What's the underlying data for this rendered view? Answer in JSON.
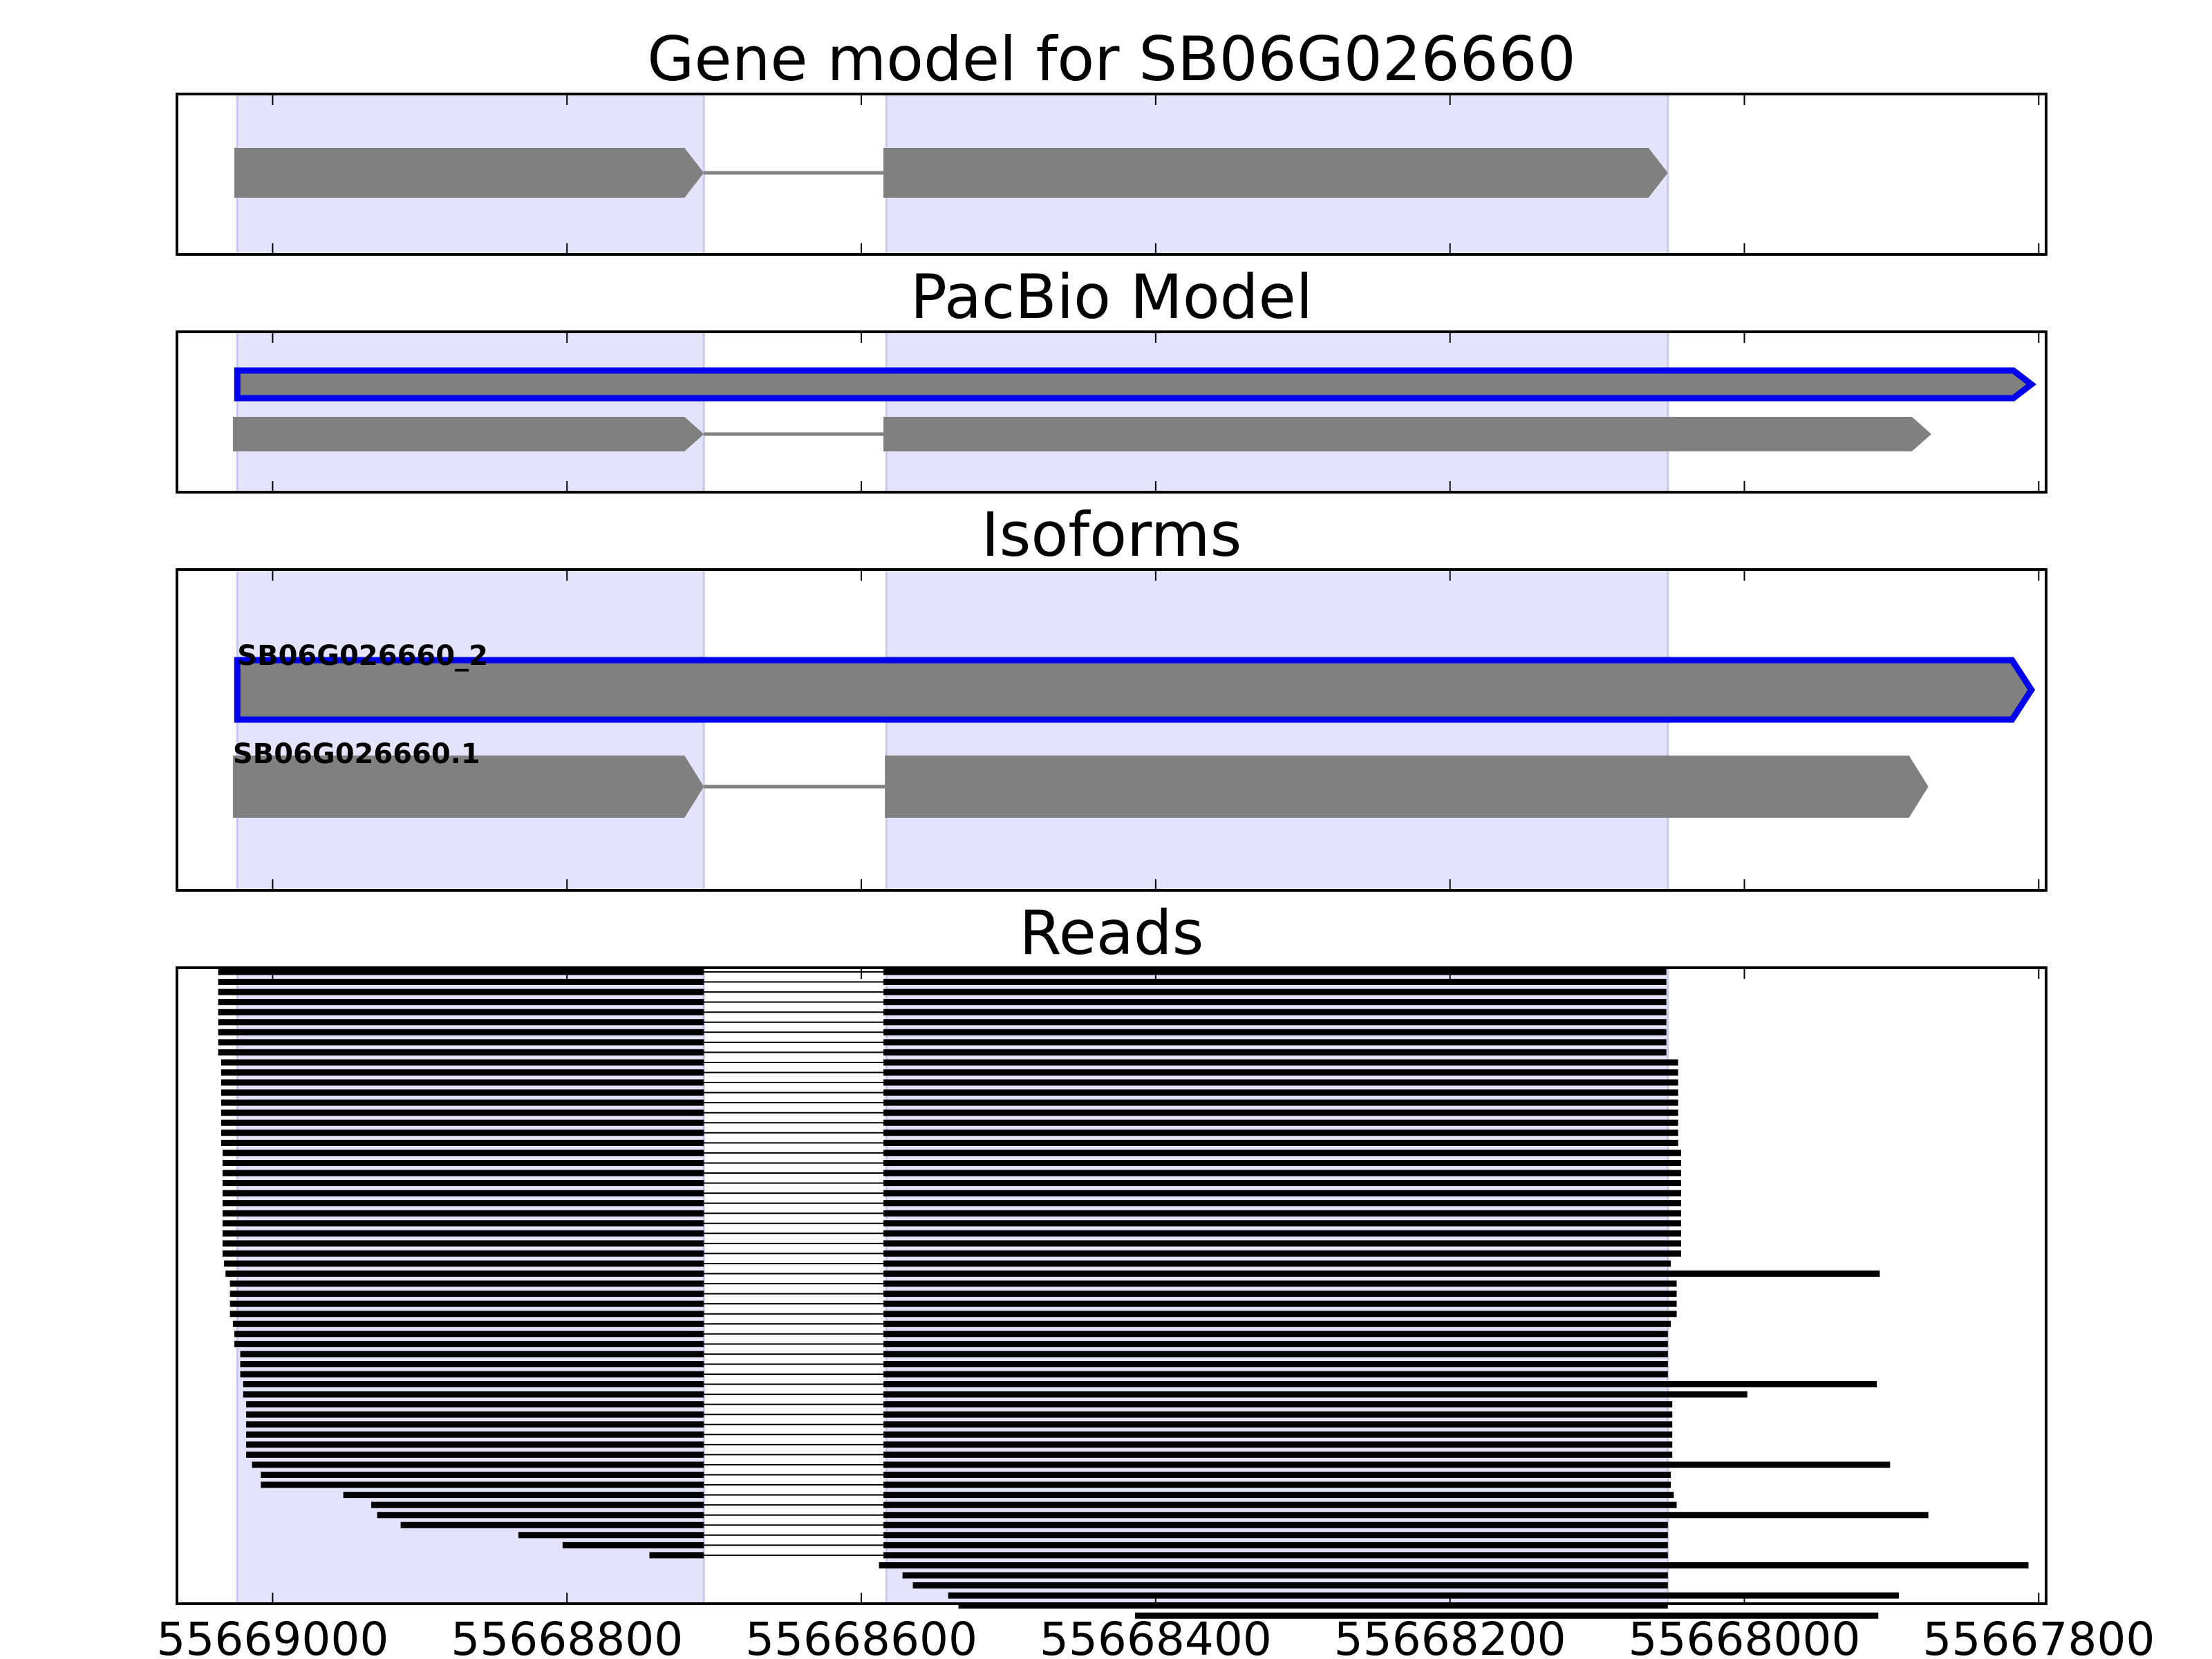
{
  "chart_data": {
    "type": "gene-track",
    "x_axis": {
      "reversed": true,
      "xlim": [
        55669065,
        55667795
      ],
      "ticks": [
        55669000,
        55668800,
        55668600,
        55668400,
        55668200,
        55668000,
        55667800
      ],
      "tick_labels": [
        "55669000",
        "55668800",
        "55668600",
        "55668400",
        "55668200",
        "55668000",
        "55667800"
      ]
    },
    "highlighted_exons": [
      [
        55669024,
        55668707
      ],
      [
        55668583,
        55668052
      ]
    ],
    "panels": [
      {
        "id": "gene-model",
        "title": "Gene model for SB06G026660",
        "tracks": [
          {
            "label": "",
            "exons": [
              [
                55669026,
                55668707
              ],
              [
                55668585,
                55668052
              ]
            ],
            "strand": "-",
            "outlined": false
          }
        ]
      },
      {
        "id": "pacbio-model",
        "title": "PacBio Model",
        "tracks": [
          {
            "label": "",
            "exons": [
              [
                55669024,
                55667805
              ]
            ],
            "strand": "-",
            "outlined": true
          },
          {
            "label": "",
            "exons": [
              [
                55669027,
                55668707
              ],
              [
                55668585,
                55667873
              ]
            ],
            "strand": "-",
            "outlined": false
          }
        ]
      },
      {
        "id": "isoforms",
        "title": "Isoforms",
        "tracks": [
          {
            "label": "SB06G026660_2",
            "exons": [
              [
                55669024,
                55667805
              ]
            ],
            "strand": "-",
            "outlined": true
          },
          {
            "label": "SB06G026660.1",
            "exons": [
              [
                55669027,
                55668707
              ],
              [
                55668584,
                55667875
              ]
            ],
            "strand": "-",
            "outlined": false
          }
        ]
      },
      {
        "id": "reads",
        "title": "Reads",
        "read_groups": [
          {
            "count": 9,
            "start": 55669037,
            "second_block_end": 55668053
          },
          {
            "count": 9,
            "start": 55669035,
            "second_block_end": 55668045
          },
          {
            "count": 11,
            "start": 55669034,
            "second_block_end": 55668043
          },
          {
            "count": 1,
            "start": 55669033,
            "second_block_end": 55668050
          },
          {
            "count": 1,
            "start": 55669032,
            "second_block_end": 55667908
          },
          {
            "count": 4,
            "start": 55669029,
            "second_block_end": 55668046
          },
          {
            "count": 1,
            "start": 55669027,
            "second_block_end": 55668050
          },
          {
            "count": 2,
            "start": 55669026,
            "second_block_end": 55668052
          },
          {
            "count": 3,
            "start": 55669022,
            "second_block_end": 55668052
          },
          {
            "count": 1,
            "start": 55669020,
            "second_block_end": 55667910
          },
          {
            "count": 1,
            "start": 55669020,
            "second_block_end": 55667998
          },
          {
            "count": 6,
            "start": 55669018,
            "second_block_end": 55668049
          },
          {
            "count": 1,
            "start": 55669014,
            "second_block_end": 55667901
          },
          {
            "count": 2,
            "start": 55669008,
            "second_block_end": 55668050
          },
          {
            "count": 1,
            "start": 55668952,
            "second_block_end": 55668048
          },
          {
            "count": 1,
            "start": 55668933,
            "second_block_end": 55668046
          },
          {
            "count": 1,
            "start": 55668929,
            "second_block_end": 55667875
          },
          {
            "count": 1,
            "start": 55668913,
            "second_block_end": 55668052
          },
          {
            "count": 1,
            "start": 55668833,
            "second_block_end": 55668052
          },
          {
            "count": 1,
            "start": 55668803,
            "second_block_end": 55668052
          },
          {
            "count": 1,
            "start": 55668744,
            "second_block_end": 55668052
          }
        ],
        "single_block_reads": [
          {
            "start": 55668588,
            "end": 55667807
          },
          {
            "start": 55668572,
            "end": 55668052
          },
          {
            "start": 55668565,
            "end": 55668052
          },
          {
            "start": 55668541,
            "end": 55667895
          },
          {
            "start": 55668534,
            "end": 55668052
          },
          {
            "start": 55668414,
            "end": 55667909
          }
        ]
      }
    ]
  }
}
